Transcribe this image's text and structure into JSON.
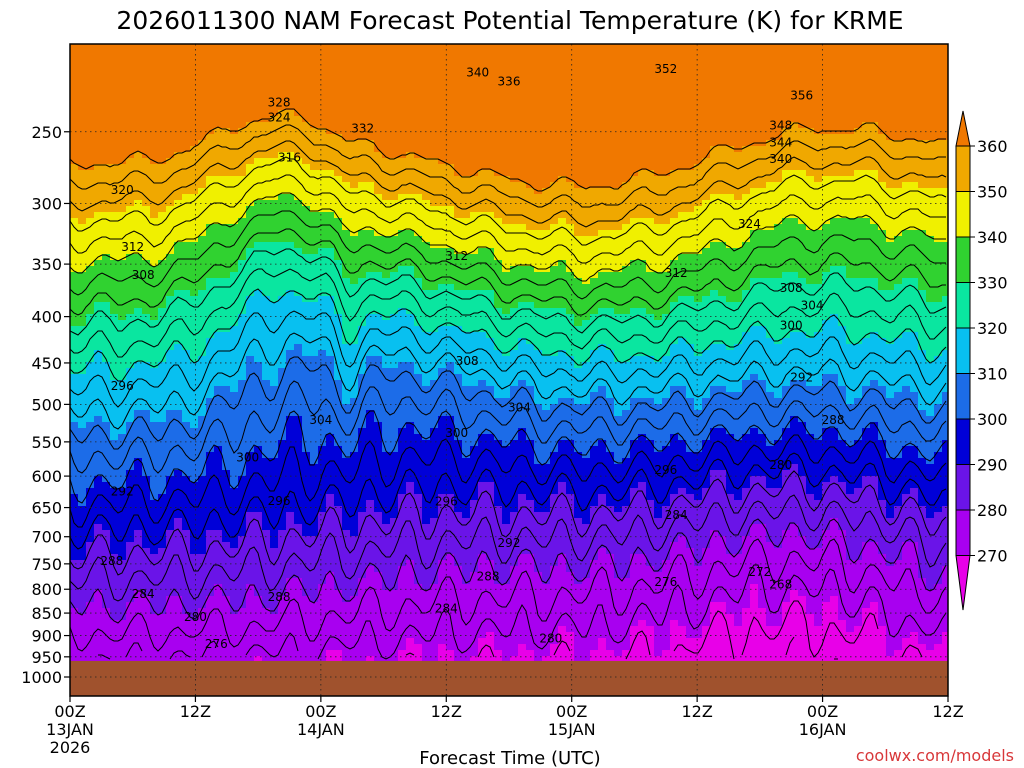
{
  "chart_data": {
    "type": "heatmap",
    "title": "2026011300 NAM Forecast Potential Temperature (K) for KRME",
    "xlabel": "Forecast Time (UTC)",
    "ylabel": "",
    "credit": "coolwx.com/models",
    "x_ticks": [
      {
        "hour": 0,
        "lines": [
          "00Z",
          "13JAN",
          "2026"
        ]
      },
      {
        "hour": 12,
        "lines": [
          "12Z"
        ]
      },
      {
        "hour": 24,
        "lines": [
          "00Z",
          "14JAN"
        ]
      },
      {
        "hour": 36,
        "lines": [
          "12Z"
        ]
      },
      {
        "hour": 48,
        "lines": [
          "00Z",
          "15JAN"
        ]
      },
      {
        "hour": 60,
        "lines": [
          "12Z"
        ]
      },
      {
        "hour": 72,
        "lines": [
          "00Z",
          "16JAN"
        ]
      },
      {
        "hour": 84,
        "lines": [
          "12Z"
        ]
      }
    ],
    "x_range_hours": [
      0,
      84
    ],
    "y_ticks": [
      "250",
      "300",
      "350",
      "400",
      "450",
      "500",
      "550",
      "600",
      "650",
      "700",
      "750",
      "800",
      "850",
      "900",
      "950",
      "1000"
    ],
    "y_range_hpa": [
      200,
      1050
    ],
    "surface_pressure_hpa": 960,
    "colorbar": {
      "levels": [
        270,
        280,
        290,
        300,
        310,
        320,
        330,
        340,
        350,
        360
      ],
      "labels": [
        "270",
        "280",
        "290",
        "300",
        "310",
        "320",
        "330",
        "340",
        "350",
        "360"
      ],
      "colors": [
        "#e800e8",
        "#a800f0",
        "#6a14e8",
        "#0000d8",
        "#1c6ce8",
        "#08c0f0",
        "#0ae6a0",
        "#30d230",
        "#f0f000",
        "#f0a800",
        "#f07800"
      ]
    },
    "contour_labels": [
      {
        "text": "340",
        "hour": 39,
        "p": 215
      },
      {
        "text": "336",
        "hour": 42,
        "p": 220
      },
      {
        "text": "352",
        "hour": 57,
        "p": 213
      },
      {
        "text": "356",
        "hour": 70,
        "p": 228
      },
      {
        "text": "328",
        "hour": 20,
        "p": 232
      },
      {
        "text": "324",
        "hour": 20,
        "p": 241
      },
      {
        "text": "332",
        "hour": 28,
        "p": 248
      },
      {
        "text": "348",
        "hour": 68,
        "p": 246
      },
      {
        "text": "344",
        "hour": 68,
        "p": 257
      },
      {
        "text": "340",
        "hour": 68,
        "p": 268
      },
      {
        "text": "316",
        "hour": 21,
        "p": 267
      },
      {
        "text": "320",
        "hour": 5,
        "p": 290
      },
      {
        "text": "324",
        "hour": 65,
        "p": 316
      },
      {
        "text": "312",
        "hour": 6,
        "p": 335
      },
      {
        "text": "312",
        "hour": 37,
        "p": 343
      },
      {
        "text": "312",
        "hour": 58,
        "p": 358
      },
      {
        "text": "308",
        "hour": 7,
        "p": 360
      },
      {
        "text": "308",
        "hour": 69,
        "p": 372
      },
      {
        "text": "304",
        "hour": 71,
        "p": 389
      },
      {
        "text": "300",
        "hour": 69,
        "p": 409
      },
      {
        "text": "308",
        "hour": 38,
        "p": 448
      },
      {
        "text": "292",
        "hour": 70,
        "p": 467
      },
      {
        "text": "296",
        "hour": 5,
        "p": 477
      },
      {
        "text": "304",
        "hour": 43,
        "p": 504
      },
      {
        "text": "304",
        "hour": 24,
        "p": 520
      },
      {
        "text": "288",
        "hour": 73,
        "p": 520
      },
      {
        "text": "300",
        "hour": 37,
        "p": 538
      },
      {
        "text": "300",
        "hour": 17,
        "p": 572
      },
      {
        "text": "280",
        "hour": 68,
        "p": 583
      },
      {
        "text": "296",
        "hour": 57,
        "p": 591
      },
      {
        "text": "292",
        "hour": 5,
        "p": 624
      },
      {
        "text": "296",
        "hour": 20,
        "p": 639
      },
      {
        "text": "296",
        "hour": 36,
        "p": 640
      },
      {
        "text": "284",
        "hour": 58,
        "p": 662
      },
      {
        "text": "292",
        "hour": 42,
        "p": 711
      },
      {
        "text": "288",
        "hour": 4,
        "p": 745
      },
      {
        "text": "288",
        "hour": 40,
        "p": 775
      },
      {
        "text": "272",
        "hour": 66,
        "p": 766
      },
      {
        "text": "276",
        "hour": 57,
        "p": 785
      },
      {
        "text": "268",
        "hour": 68,
        "p": 790
      },
      {
        "text": "284",
        "hour": 7,
        "p": 810
      },
      {
        "text": "288",
        "hour": 20,
        "p": 816
      },
      {
        "text": "284",
        "hour": 36,
        "p": 840
      },
      {
        "text": "280",
        "hour": 12,
        "p": 858
      },
      {
        "text": "280",
        "hour": 46,
        "p": 907
      },
      {
        "text": "276",
        "hour": 14,
        "p": 920
      }
    ]
  }
}
